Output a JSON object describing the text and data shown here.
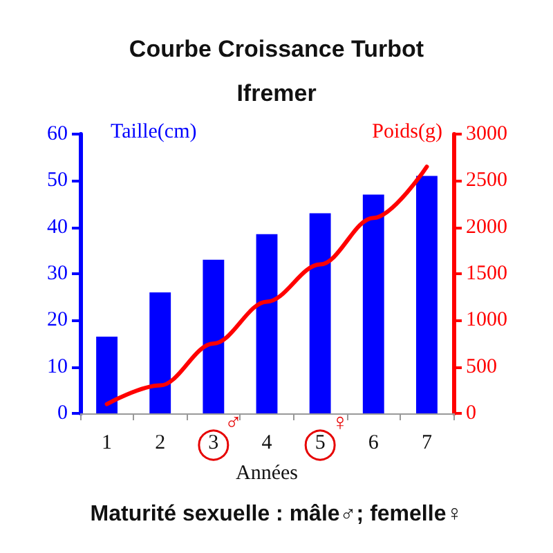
{
  "chart_data": {
    "type": "bar",
    "title": "Courbe Croissance Turbot",
    "subtitle": "Ifremer",
    "xlabel": "Années",
    "ylabel": "Taille(cm)",
    "y2label": "Poids(g)",
    "categories": [
      "1",
      "2",
      "3",
      "4",
      "5",
      "6",
      "7"
    ],
    "series": [
      {
        "color": "#0000ff",
        "values": [
          16.5,
          26,
          33,
          38.5,
          43,
          47,
          51
        ]
      },
      {
        "type": "line",
        "axis": "y2",
        "color": "#ff0000",
        "values": [
          100,
          300,
          750,
          1200,
          1600,
          2100,
          2650
        ]
      }
    ],
    "ylim": [
      0,
      60
    ],
    "yticks": [
      0,
      10,
      20,
      30,
      40,
      50,
      60
    ],
    "y2lim": [
      0,
      3000
    ],
    "y2ticks": [
      0,
      500,
      1000,
      1500,
      2000,
      2500,
      3000
    ],
    "marker": "none",
    "annotations": [
      {
        "text": "♂",
        "x": "3",
        "y": 0
      },
      {
        "text": "♀",
        "x": "5",
        "y": 0
      },
      "Maturité sexuelle : mâle♂; femelle♀"
    ]
  }
}
